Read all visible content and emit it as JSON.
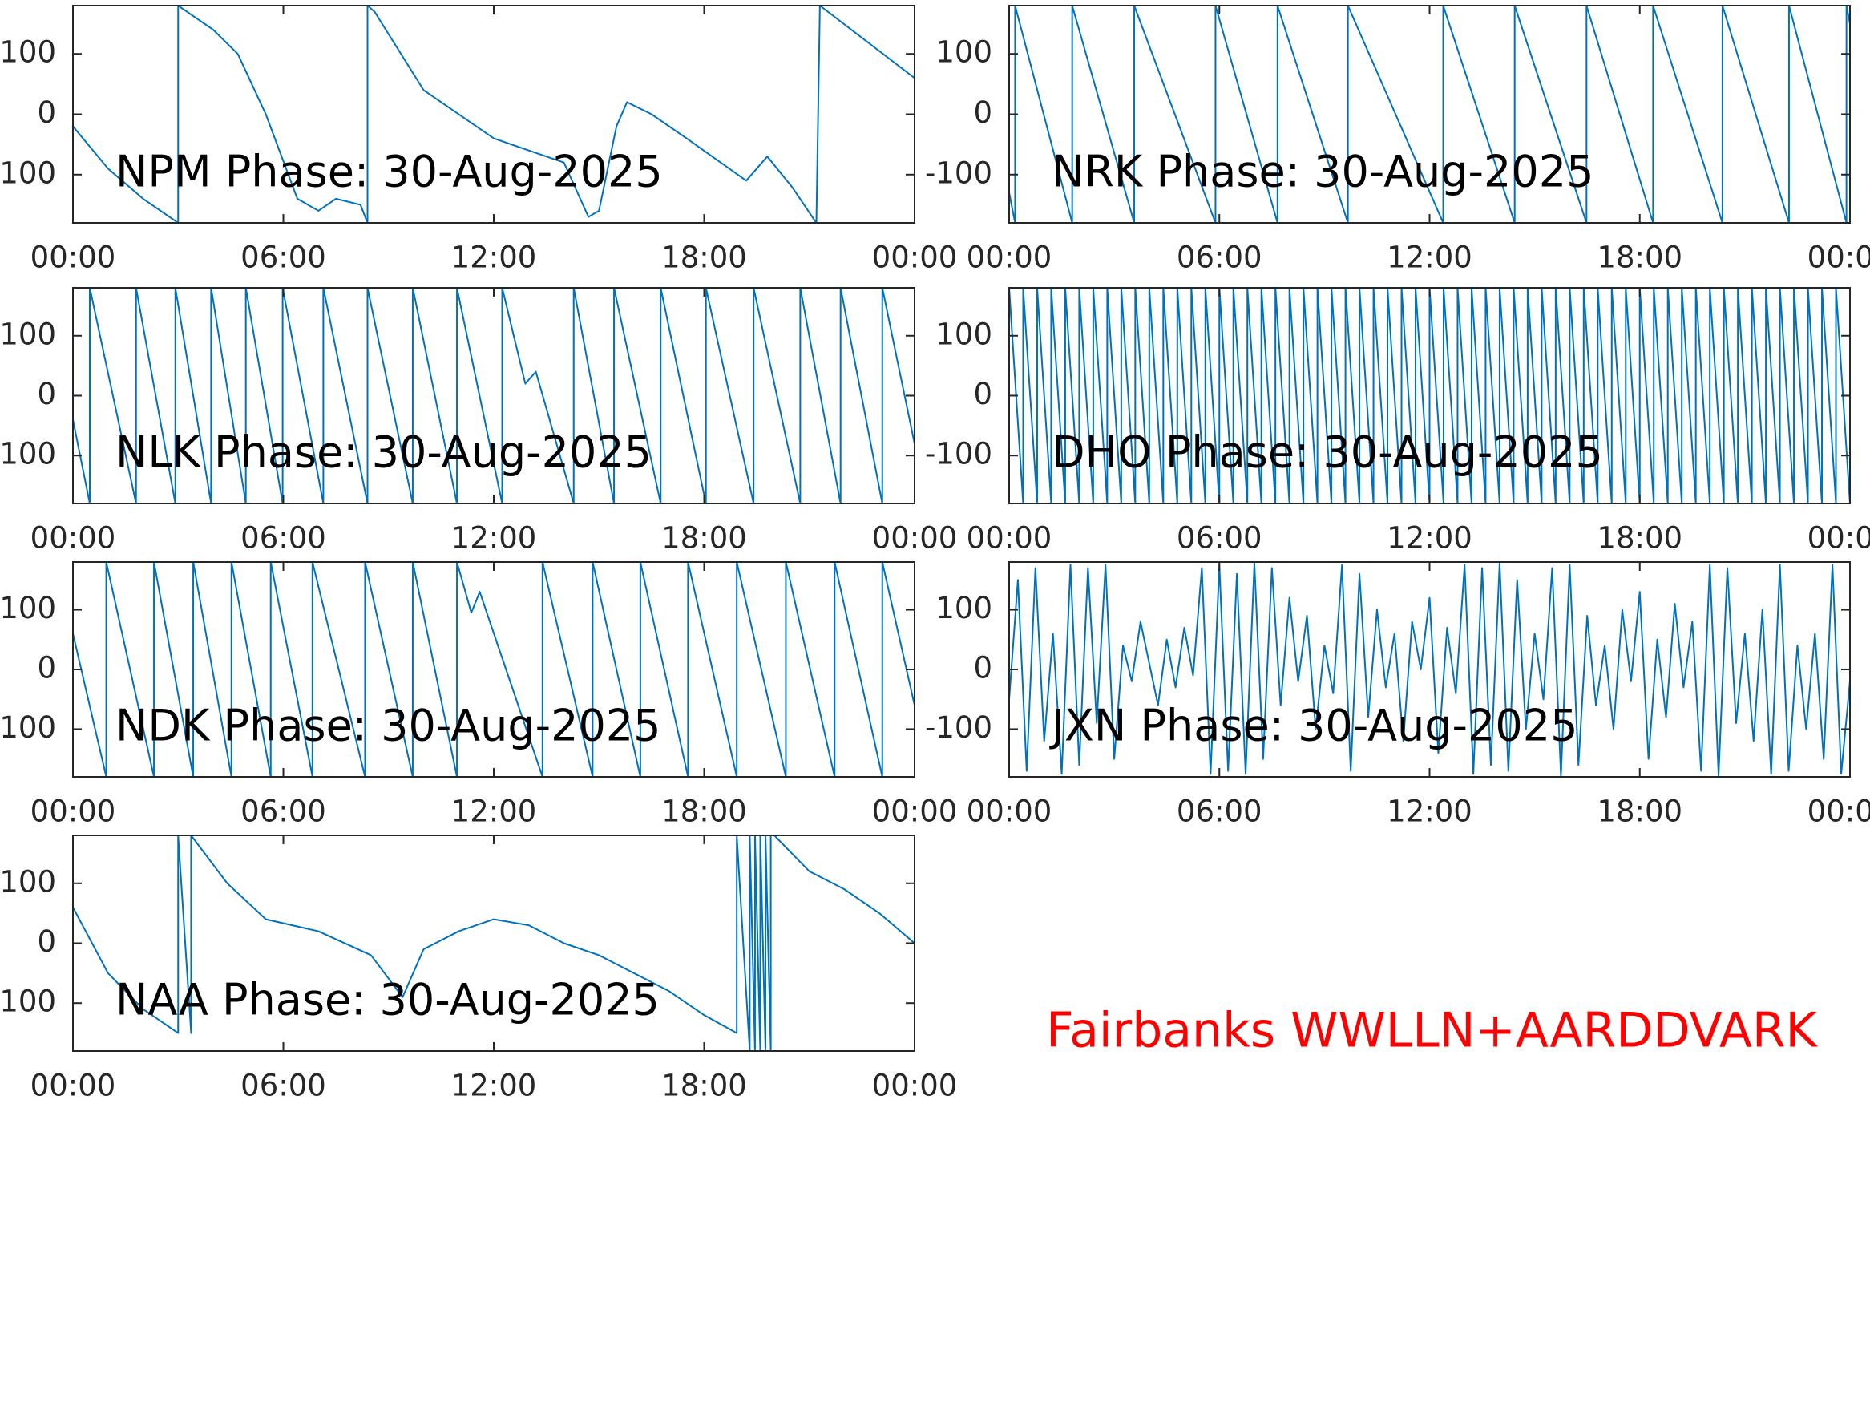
{
  "caption": "Fairbanks WWLLN+AARDDVARK",
  "chart_data": [
    {
      "type": "line",
      "title": "NPM Phase: 30-Aug-2025",
      "x": [
        0,
        1,
        2,
        3,
        3,
        4,
        4.7,
        5.5,
        6.4,
        7,
        7.5,
        8.2,
        8.4,
        8.4,
        8.6,
        10,
        12,
        14,
        14.7,
        15,
        15.5,
        15.8,
        16.5,
        17.5,
        19.2,
        19.8,
        20.5,
        21.2,
        21.3,
        24
      ],
      "series": [
        {
          "color": "#0072bd",
          "values": [
            -20,
            -90,
            -140,
            -180,
            180,
            140,
            100,
            0,
            -140,
            -160,
            -140,
            -150,
            -180,
            180,
            170,
            40,
            -40,
            -80,
            -170,
            -160,
            -20,
            20,
            0,
            -40,
            -110,
            -70,
            -120,
            -180,
            180,
            60
          ]
        }
      ],
      "xlim": [
        0,
        24
      ],
      "xticks": [
        {
          "value": 0,
          "label": "00:00"
        },
        {
          "value": 6,
          "label": "06:00"
        },
        {
          "value": 12,
          "label": "12:00"
        },
        {
          "value": 18,
          "label": "18:00"
        },
        {
          "value": 24,
          "label": "00:00"
        }
      ],
      "ylim": [
        -180,
        180
      ],
      "yticks": [
        -100,
        0,
        100
      ]
    },
    {
      "type": "line",
      "title": "NRK Phase: 30-Aug-2025",
      "x": [
        0,
        0.17,
        0.17,
        1.8,
        1.8,
        3.57,
        3.57,
        5.89,
        5.89,
        7.66,
        7.66,
        9.67,
        9.67,
        12.39,
        12.39,
        14.43,
        14.43,
        16.48,
        16.48,
        18.38,
        18.38,
        20.36,
        20.36,
        22.26,
        22.26,
        23.9,
        23.9,
        24
      ],
      "series": [
        {
          "color": "#0072bd",
          "values": [
            -130,
            -180,
            180,
            -180,
            180,
            -180,
            180,
            -180,
            180,
            -180,
            180,
            -180,
            180,
            -180,
            180,
            -180,
            180,
            -180,
            180,
            -180,
            180,
            -180,
            180,
            -180,
            180,
            -180,
            180,
            150
          ]
        }
      ],
      "xlim": [
        0,
        24
      ],
      "xticks": [
        {
          "value": 0,
          "label": "00:00"
        },
        {
          "value": 6,
          "label": "06:00"
        },
        {
          "value": 12,
          "label": "12:00"
        },
        {
          "value": 18,
          "label": "18:00"
        },
        {
          "value": 24,
          "label": "00:00"
        }
      ],
      "ylim": [
        -180,
        180
      ],
      "yticks": [
        -100,
        0,
        100
      ]
    },
    {
      "type": "line",
      "title": "NLK Phase: 30-Aug-2025",
      "x": [
        0,
        0.48,
        0.48,
        1.8,
        1.8,
        2.92,
        2.92,
        3.94,
        3.94,
        4.93,
        4.93,
        5.98,
        5.98,
        7.14,
        7.14,
        8.4,
        8.4,
        9.69,
        9.69,
        10.95,
        10.95,
        12.24,
        12.24,
        12.9,
        13.2,
        14.28,
        14.28,
        15.43,
        15.43,
        16.76,
        16.76,
        18.05,
        18.05,
        19.41,
        19.41,
        20.74,
        20.74,
        21.89,
        21.89,
        23.08,
        23.08,
        24
      ],
      "series": [
        {
          "color": "#0072bd",
          "values": [
            -40,
            -180,
            180,
            -180,
            180,
            -180,
            180,
            -180,
            180,
            -180,
            180,
            -180,
            180,
            -180,
            180,
            -180,
            180,
            -180,
            180,
            -180,
            180,
            -180,
            180,
            20,
            40,
            -180,
            180,
            -180,
            180,
            -180,
            180,
            -180,
            180,
            -180,
            180,
            -180,
            180,
            -180,
            180,
            -180,
            180,
            -80
          ]
        }
      ],
      "xlim": [
        0,
        24
      ],
      "xticks": [
        {
          "value": 0,
          "label": "00:00"
        },
        {
          "value": 6,
          "label": "06:00"
        },
        {
          "value": 12,
          "label": "12:00"
        },
        {
          "value": 18,
          "label": "18:00"
        },
        {
          "value": 24,
          "label": "00:00"
        }
      ],
      "ylim": [
        -180,
        180
      ],
      "yticks": [
        -100,
        0,
        100
      ]
    },
    {
      "type": "line",
      "title": "DHO Phase: 30-Aug-2025",
      "x": [
        0,
        0.4,
        0.4,
        0.8,
        0.8,
        1.2,
        1.2,
        1.6,
        1.6,
        2,
        2,
        2.4,
        2.4,
        2.8,
        2.8,
        3.2,
        3.2,
        3.6,
        3.6,
        4,
        4,
        4.4,
        4.4,
        4.8,
        4.8,
        5.2,
        5.2,
        5.6,
        5.6,
        6,
        6,
        6.4,
        6.4,
        6.8,
        6.8,
        7.2,
        7.2,
        7.6,
        7.6,
        8,
        8,
        8.4,
        8.4,
        8.8,
        8.8,
        9.2,
        9.2,
        9.6,
        9.6,
        10,
        10,
        10.4,
        10.4,
        10.8,
        10.8,
        11.2,
        11.2,
        11.6,
        11.6,
        12,
        12,
        12.4,
        12.4,
        12.8,
        12.8,
        13.2,
        13.2,
        13.6,
        13.6,
        14,
        14,
        14.4,
        14.4,
        14.8,
        14.8,
        15.2,
        15.2,
        15.6,
        15.6,
        16,
        16,
        16.4,
        16.4,
        16.8,
        16.8,
        17.2,
        17.2,
        17.6,
        17.6,
        18,
        18,
        18.4,
        18.4,
        18.8,
        18.8,
        19.2,
        19.2,
        19.6,
        19.6,
        20,
        20,
        20.4,
        20.4,
        20.8,
        20.8,
        21.2,
        21.2,
        21.6,
        21.6,
        22,
        22,
        22.4,
        22.4,
        22.8,
        22.8,
        23.2,
        23.2,
        23.6,
        23.6,
        24
      ],
      "series": [
        {
          "color": "#0072bd",
          "values": [
            180,
            -180,
            180,
            -180,
            180,
            -180,
            180,
            -180,
            180,
            -180,
            180,
            -180,
            180,
            -180,
            180,
            -180,
            180,
            -180,
            180,
            -180,
            180,
            -180,
            180,
            -180,
            180,
            -180,
            180,
            -180,
            180,
            -180,
            180,
            -180,
            180,
            -180,
            180,
            -180,
            180,
            -180,
            180,
            -180,
            180,
            -180,
            180,
            -180,
            180,
            -180,
            180,
            -180,
            180,
            -180,
            180,
            -180,
            180,
            -180,
            180,
            -180,
            180,
            -180,
            180,
            -180,
            180,
            -180,
            180,
            -180,
            180,
            -180,
            180,
            -180,
            180,
            -180,
            180,
            -180,
            180,
            -180,
            180,
            -180,
            180,
            -180,
            180,
            -180,
            180,
            -180,
            180,
            -180,
            180,
            -180,
            180,
            -180,
            180,
            -180,
            180,
            -180,
            180,
            -180,
            180,
            -180,
            180,
            -180,
            180,
            -180,
            180,
            -180,
            180,
            -180,
            180,
            -180,
            180,
            -180,
            180,
            -180,
            180,
            -180,
            180,
            -180,
            180,
            -180,
            180,
            -180,
            180,
            -180
          ]
        }
      ],
      "xlim": [
        0,
        24
      ],
      "xticks": [
        {
          "value": 0,
          "label": "00:00"
        },
        {
          "value": 6,
          "label": "06:00"
        },
        {
          "value": 12,
          "label": "12:00"
        },
        {
          "value": 18,
          "label": "18:00"
        },
        {
          "value": 24,
          "label": "00:00"
        }
      ],
      "ylim": [
        -180,
        180
      ],
      "yticks": [
        -100,
        0,
        100
      ]
    },
    {
      "type": "line",
      "title": "NDK Phase: 30-Aug-2025",
      "x": [
        0,
        0.95,
        0.95,
        2.31,
        2.31,
        3.43,
        3.43,
        4.52,
        4.52,
        5.64,
        5.64,
        6.83,
        6.83,
        8.33,
        8.33,
        9.69,
        9.69,
        10.95,
        10.95,
        11.36,
        11.6,
        13.39,
        13.39,
        14.82,
        14.82,
        16.18,
        16.18,
        17.54,
        17.54,
        18.93,
        18.93,
        20.33,
        20.33,
        21.72,
        21.72,
        23.08,
        23.08,
        24
      ],
      "series": [
        {
          "color": "#0072bd",
          "values": [
            60,
            -180,
            180,
            -180,
            180,
            -180,
            180,
            -180,
            180,
            -180,
            180,
            -180,
            180,
            -180,
            180,
            -180,
            180,
            -180,
            180,
            95,
            130,
            -180,
            180,
            -180,
            180,
            -180,
            180,
            -180,
            180,
            -180,
            180,
            -180,
            180,
            -180,
            180,
            -180,
            180,
            -60
          ]
        }
      ],
      "xlim": [
        0,
        24
      ],
      "xticks": [
        {
          "value": 0,
          "label": "00:00"
        },
        {
          "value": 6,
          "label": "06:00"
        },
        {
          "value": 12,
          "label": "12:00"
        },
        {
          "value": 18,
          "label": "18:00"
        },
        {
          "value": 24,
          "label": "00:00"
        }
      ],
      "ylim": [
        -180,
        180
      ],
      "yticks": [
        -100,
        0,
        100
      ]
    },
    {
      "type": "line",
      "title": "JXN Phase: 30-Aug-2025",
      "x": [
        0,
        0.25,
        0.5,
        0.75,
        1,
        1.25,
        1.5,
        1.75,
        2,
        2.25,
        2.5,
        2.75,
        3,
        3.25,
        3.5,
        3.75,
        4,
        4.25,
        4.5,
        4.75,
        5,
        5.25,
        5.5,
        5.75,
        6,
        6.25,
        6.5,
        6.75,
        7,
        7.25,
        7.5,
        7.75,
        8,
        8.25,
        8.5,
        8.75,
        9,
        9.25,
        9.5,
        9.75,
        10,
        10.25,
        10.5,
        10.75,
        11,
        11.25,
        11.5,
        11.75,
        12,
        12.25,
        12.5,
        12.75,
        13,
        13.25,
        13.5,
        13.75,
        14,
        14.25,
        14.5,
        14.75,
        15,
        15.25,
        15.5,
        15.75,
        16,
        16.25,
        16.5,
        16.75,
        17,
        17.25,
        17.5,
        17.75,
        18,
        18.25,
        18.5,
        18.75,
        19,
        19.25,
        19.5,
        19.75,
        20,
        20.25,
        20.5,
        20.75,
        21,
        21.25,
        21.5,
        21.75,
        22,
        22.25,
        22.5,
        22.75,
        23,
        23.25,
        23.5,
        23.75,
        24
      ],
      "series": [
        {
          "color": "#0072bd",
          "values": [
            -50,
            150,
            -170,
            170,
            -120,
            60,
            -175,
            175,
            -160,
            170,
            -90,
            175,
            -150,
            40,
            -20,
            80,
            10,
            -60,
            50,
            -30,
            70,
            -10,
            170,
            -175,
            175,
            -170,
            160,
            -175,
            178,
            -150,
            170,
            -60,
            120,
            -20,
            90,
            -100,
            40,
            -40,
            175,
            -170,
            160,
            -80,
            100,
            -30,
            60,
            -120,
            80,
            0,
            120,
            -140,
            70,
            -40,
            175,
            -175,
            170,
            -160,
            178,
            -170,
            150,
            -100,
            60,
            -50,
            170,
            -178,
            175,
            -160,
            90,
            -60,
            40,
            -100,
            100,
            -20,
            130,
            -150,
            50,
            -80,
            110,
            -30,
            80,
            -170,
            175,
            -178,
            170,
            -90,
            60,
            -120,
            100,
            -175,
            175,
            -170,
            40,
            -100,
            60,
            -150,
            175,
            -175,
            -20
          ]
        }
      ],
      "xlim": [
        0,
        24
      ],
      "xticks": [
        {
          "value": 0,
          "label": "00:00"
        },
        {
          "value": 6,
          "label": "06:00"
        },
        {
          "value": 12,
          "label": "12:00"
        },
        {
          "value": 18,
          "label": "18:00"
        },
        {
          "value": 24,
          "label": "00:00"
        }
      ],
      "ylim": [
        -180,
        180
      ],
      "yticks": [
        -100,
        0,
        100
      ]
    },
    {
      "type": "line",
      "title": "NAA Phase: 30-Aug-2025",
      "x": [
        0,
        1,
        2,
        3,
        3,
        3.37,
        3.37,
        4.4,
        5.5,
        7,
        8.5,
        9.4,
        10,
        11,
        12,
        13,
        14,
        15,
        16,
        17,
        18,
        18.93,
        18.93,
        19.3,
        19.3,
        19.45,
        19.45,
        19.6,
        19.6,
        19.75,
        19.75,
        19.9,
        19.9,
        20,
        21,
        22,
        23,
        24
      ],
      "series": [
        {
          "color": "#0072bd",
          "values": [
            60,
            -50,
            -110,
            -150,
            180,
            -150,
            180,
            100,
            40,
            20,
            -20,
            -90,
            -10,
            20,
            40,
            30,
            0,
            -20,
            -50,
            -80,
            -120,
            -150,
            180,
            -180,
            180,
            -180,
            180,
            -180,
            180,
            -180,
            180,
            -180,
            180,
            180,
            120,
            90,
            50,
            0
          ]
        }
      ],
      "xlim": [
        0,
        24
      ],
      "xticks": [
        {
          "value": 0,
          "label": "00:00"
        },
        {
          "value": 6,
          "label": "06:00"
        },
        {
          "value": 12,
          "label": "12:00"
        },
        {
          "value": 18,
          "label": "18:00"
        },
        {
          "value": 24,
          "label": "00:00"
        }
      ],
      "ylim": [
        -180,
        180
      ],
      "yticks": [
        -100,
        0,
        100
      ]
    }
  ]
}
